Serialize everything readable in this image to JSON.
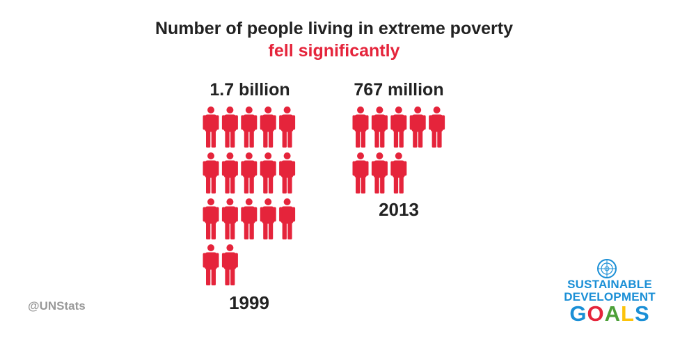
{
  "header": {
    "title": "Number of people living in extreme poverty",
    "subtitle": "fell significantly"
  },
  "chart_data": {
    "type": "pictogram",
    "categories": [
      "1999",
      "2013"
    ],
    "value_labels": [
      "1.7 billion",
      "767 million"
    ],
    "values": [
      1700000000,
      767000000
    ],
    "icons_shown": [
      17,
      8
    ],
    "icon_color": "#e5243b",
    "title": "Number of people living in extreme poverty",
    "subtitle": "fell significantly"
  },
  "footer": {
    "handle": "@UNStats",
    "logo_line1": "SUSTAINABLE",
    "logo_line2": "DEVELOPMENT",
    "logo_line3": "GOALS"
  },
  "colors": {
    "accent": "#e5243b",
    "text": "#222222",
    "muted": "#999999",
    "sdg_blue": "#1a8fd6"
  }
}
